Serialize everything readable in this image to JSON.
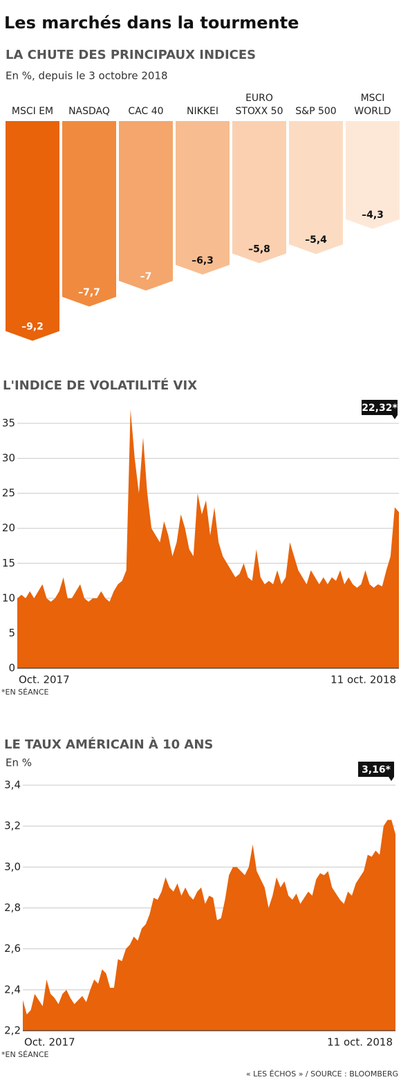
{
  "title": "Les marchés dans la tourmente",
  "source": "« LES ÉCHOS » / SOURCE : BLOOMBERG",
  "chart_data": [
    {
      "type": "bar",
      "title": "LA CHUTE DES PRINCIPAUX INDICES",
      "subtitle": "En %, depuis le 3 octobre 2018",
      "categories": [
        "MSCI EM",
        "NASDAQ",
        "CAC 40",
        "NIKKEI",
        "EURO\nSTOXX 50",
        "S&P 500",
        "MSCI\nWORLD"
      ],
      "values": [
        -9.2,
        -7.7,
        -7,
        -6.3,
        -5.8,
        -5.4,
        -4.3
      ],
      "value_labels": [
        "–9,2",
        "–7,7",
        "–7",
        "–6,3",
        "–5,8",
        "–5,4",
        "–4,3"
      ],
      "colors": [
        "#e8630a",
        "#f08a3e",
        "#f4a66c",
        "#f7bd90",
        "#fad0b0",
        "#fbdcc3",
        "#fde8d8"
      ],
      "ylim": [
        -10,
        0
      ]
    },
    {
      "type": "area",
      "title": "L'INDICE DE VOLATILITÉ VIX",
      "x_labels": [
        "Oct. 2017",
        "11 oct. 2018"
      ],
      "values": [
        10,
        10.5,
        10,
        11,
        10,
        11,
        12,
        10,
        9.5,
        10,
        11,
        13,
        10,
        10,
        11,
        12,
        10,
        9.5,
        10,
        10,
        11,
        10,
        9.5,
        11,
        12,
        12.5,
        14,
        37,
        30,
        25,
        33,
        25,
        20,
        19,
        18,
        21,
        19,
        16,
        18,
        22,
        20,
        17,
        16,
        25,
        22,
        24,
        19,
        23,
        18,
        16,
        15,
        14,
        13,
        13.5,
        15,
        13,
        12.5,
        17,
        13,
        12,
        12.5,
        12,
        14,
        12,
        13,
        18,
        16,
        14,
        13,
        12,
        14,
        13,
        12,
        13,
        12,
        13,
        12.5,
        14,
        12,
        13,
        12,
        11.5,
        12,
        14,
        12,
        11.5,
        12,
        11.7,
        14,
        16,
        23,
        22.32
      ],
      "color": "#e8630a",
      "ylim": [
        0,
        35
      ],
      "yticks": [
        0,
        5,
        10,
        15,
        20,
        25,
        30,
        35
      ],
      "grid": true,
      "annotation": "22,32*",
      "footnote": "*EN SÉANCE"
    },
    {
      "type": "area",
      "title": "LE TAUX AMÉRICAIN À 10 ANS",
      "subtitle": "En %",
      "x_labels": [
        "Oct. 2017",
        "11 oct. 2018"
      ],
      "values": [
        2.35,
        2.28,
        2.3,
        2.38,
        2.35,
        2.32,
        2.45,
        2.38,
        2.36,
        2.33,
        2.38,
        2.4,
        2.36,
        2.33,
        2.35,
        2.37,
        2.34,
        2.4,
        2.45,
        2.43,
        2.5,
        2.48,
        2.41,
        2.41,
        2.55,
        2.54,
        2.6,
        2.62,
        2.66,
        2.64,
        2.7,
        2.72,
        2.77,
        2.85,
        2.84,
        2.88,
        2.95,
        2.9,
        2.88,
        2.92,
        2.86,
        2.9,
        2.86,
        2.84,
        2.88,
        2.9,
        2.82,
        2.86,
        2.85,
        2.74,
        2.75,
        2.84,
        2.96,
        3.0,
        3.0,
        2.98,
        2.96,
        3.0,
        3.11,
        2.98,
        2.94,
        2.9,
        2.8,
        2.86,
        2.95,
        2.9,
        2.93,
        2.86,
        2.84,
        2.87,
        2.82,
        2.85,
        2.88,
        2.86,
        2.94,
        2.97,
        2.96,
        2.98,
        2.9,
        2.87,
        2.84,
        2.82,
        2.88,
        2.86,
        2.92,
        2.95,
        2.98,
        3.06,
        3.05,
        3.08,
        3.06,
        3.2,
        3.23,
        3.23,
        3.16
      ],
      "color": "#e8630a",
      "ylim": [
        2.2,
        3.4
      ],
      "yticks": [
        {
          "value": 2.2,
          "label": "2,2"
        },
        {
          "value": 2.4,
          "label": "2,4"
        },
        {
          "value": 2.6,
          "label": "2,6"
        },
        {
          "value": 2.8,
          "label": "2,8"
        },
        {
          "value": 3.0,
          "label": "3,0"
        },
        {
          "value": 3.2,
          "label": "3,2"
        },
        {
          "value": 3.4,
          "label": "3,4"
        }
      ],
      "grid": true,
      "annotation": "3,16*",
      "footnote": "*EN SÉANCE"
    }
  ]
}
